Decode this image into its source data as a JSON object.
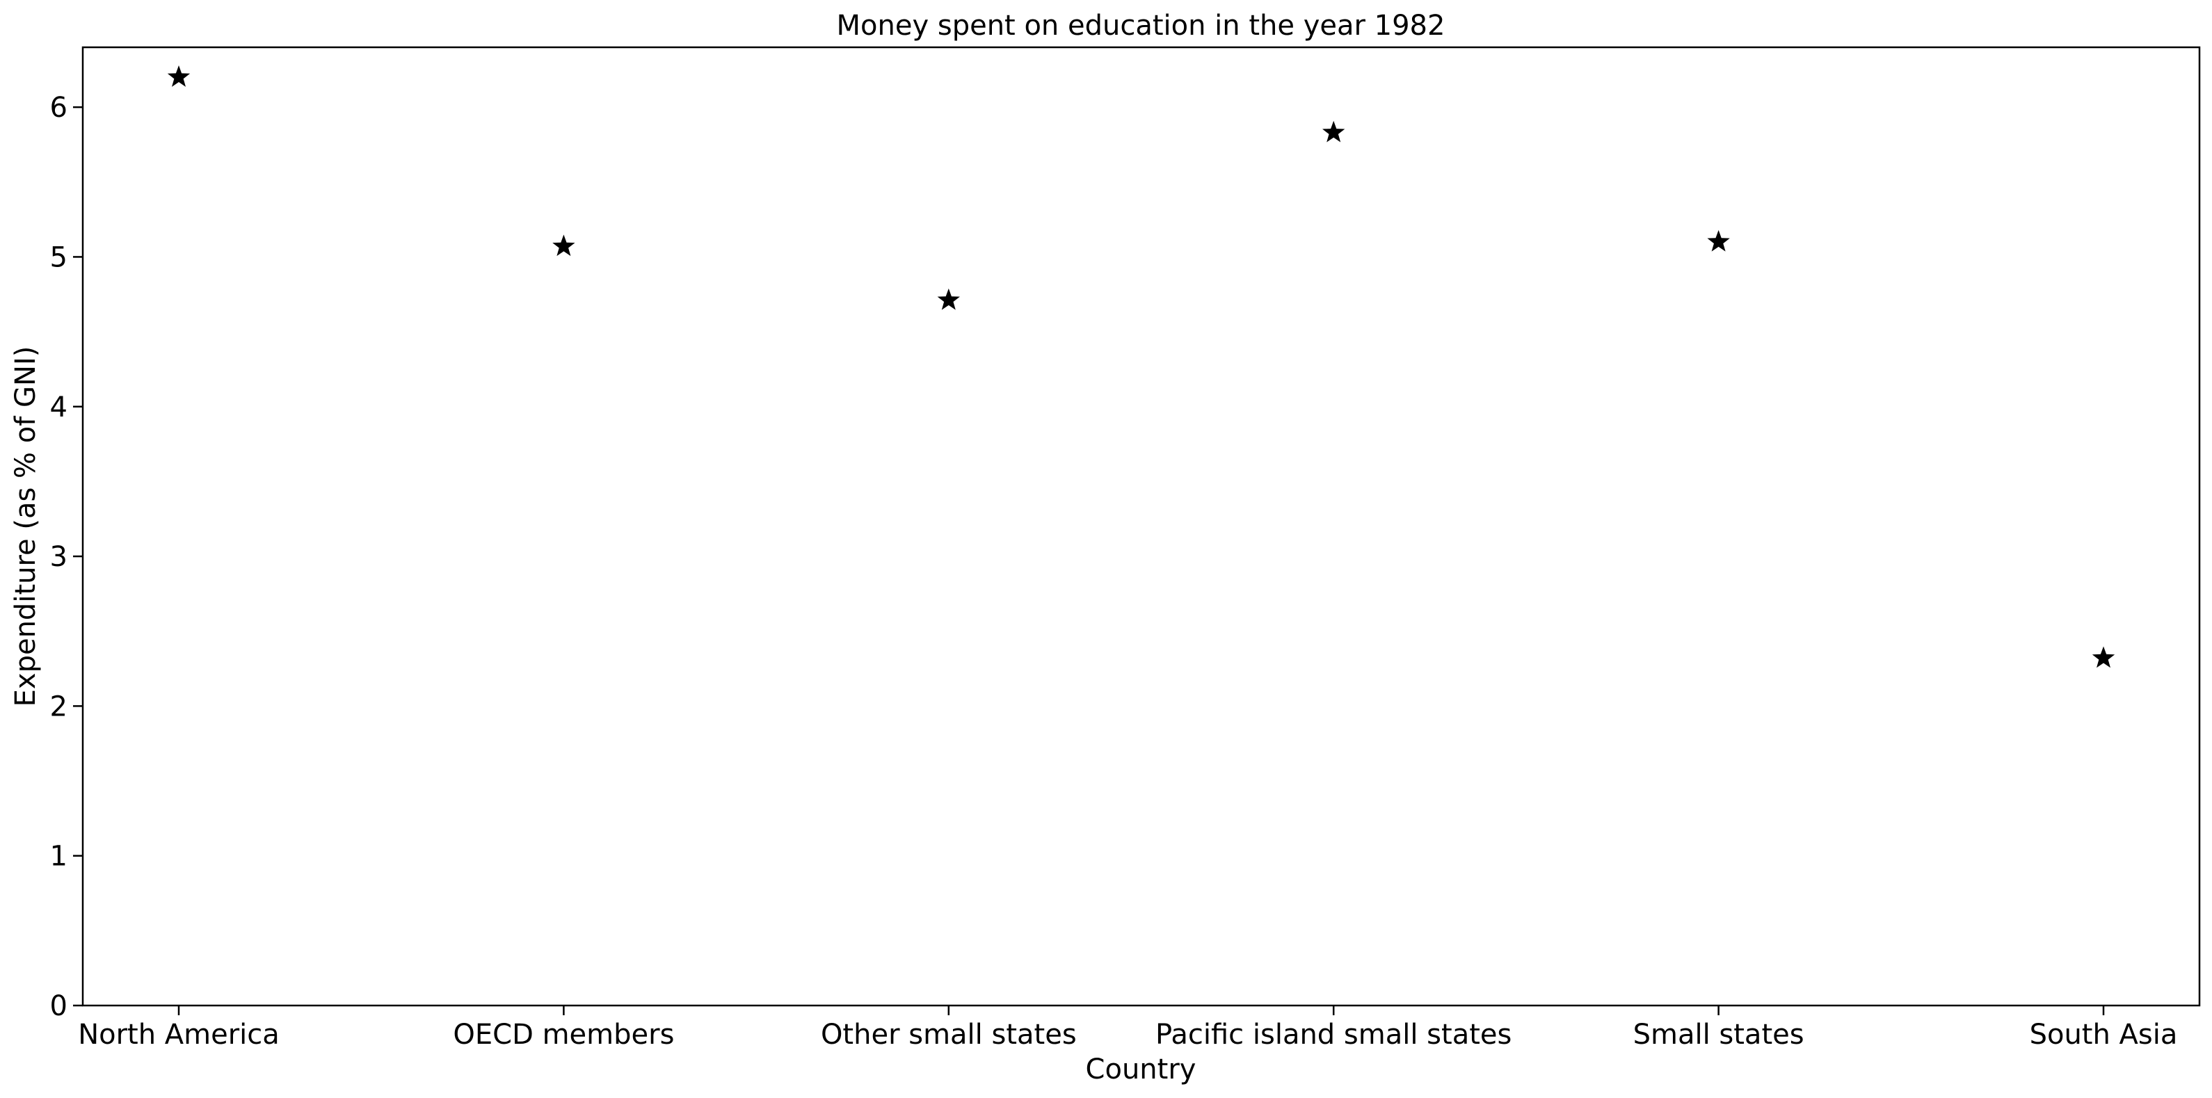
{
  "chart_data": {
    "type": "scatter",
    "title": "Money spent on education in the year 1982",
    "xlabel": "Country",
    "ylabel": "Expenditure (as % of GNI)",
    "categories": [
      "North America",
      "OECD members",
      "Other small states",
      "Pacific island small states",
      "Small states",
      "South Asia"
    ],
    "series": [
      {
        "values": [
          6.2,
          5.07,
          4.71,
          5.83,
          5.1,
          2.32
        ]
      }
    ],
    "ylim": [
      0,
      6.4
    ],
    "yticks": [
      "0",
      "1",
      "2",
      "3",
      "4",
      "5",
      "6"
    ],
    "marker": "star",
    "marker_color": "#000000",
    "grid": false,
    "legend": "none"
  }
}
